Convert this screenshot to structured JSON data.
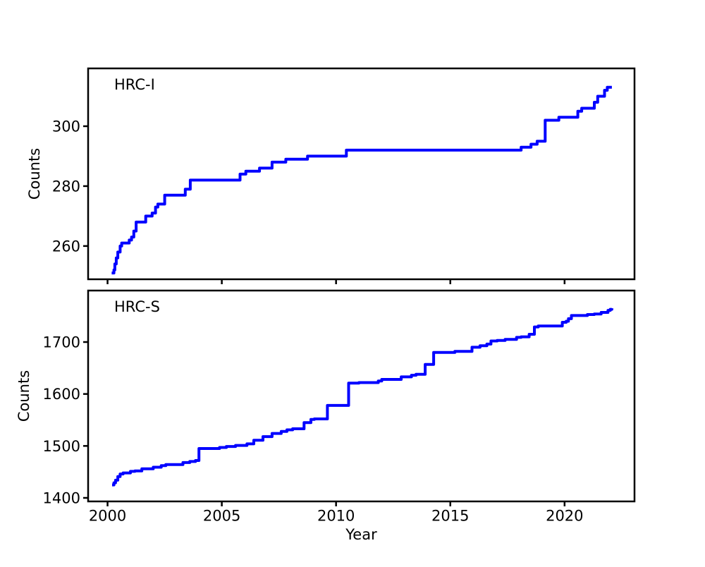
{
  "figure": {
    "background": "#ffffff",
    "text_color": "#000000",
    "spine_color": "#000000"
  },
  "chart_data": [
    {
      "type": "line",
      "panel": "top",
      "label": "HRC-I",
      "ylabel": "Counts",
      "xlabel": "",
      "line_color": "#0000ff",
      "line_width": 4,
      "step_style": "post",
      "grid": false,
      "legend": "none",
      "xlim": [
        1999.15,
        2023.06
      ],
      "ylim": [
        248.9,
        319.3
      ],
      "xticks": [
        2000,
        2005,
        2010,
        2015,
        2020
      ],
      "yticks": [
        260,
        280,
        300
      ],
      "show_xtick_labels": false,
      "points": [
        [
          2000.18,
          251
        ],
        [
          2000.28,
          252
        ],
        [
          2000.32,
          254
        ],
        [
          2000.38,
          256
        ],
        [
          2000.45,
          258
        ],
        [
          2000.55,
          260
        ],
        [
          2000.62,
          261
        ],
        [
          2000.95,
          262
        ],
        [
          2001.05,
          263
        ],
        [
          2001.15,
          265
        ],
        [
          2001.25,
          268
        ],
        [
          2001.67,
          270
        ],
        [
          2001.95,
          271
        ],
        [
          2002.1,
          273
        ],
        [
          2002.2,
          274
        ],
        [
          2002.5,
          277
        ],
        [
          2003.4,
          279
        ],
        [
          2003.62,
          282
        ],
        [
          2005.8,
          284
        ],
        [
          2006.05,
          285
        ],
        [
          2006.65,
          286
        ],
        [
          2007.2,
          288
        ],
        [
          2007.8,
          289
        ],
        [
          2008.75,
          290
        ],
        [
          2010.45,
          292
        ],
        [
          2018.1,
          293
        ],
        [
          2018.53,
          294
        ],
        [
          2018.8,
          295
        ],
        [
          2019.15,
          302
        ],
        [
          2019.75,
          303
        ],
        [
          2020.58,
          305
        ],
        [
          2020.75,
          306
        ],
        [
          2021.3,
          308
        ],
        [
          2021.45,
          310
        ],
        [
          2021.75,
          312
        ],
        [
          2021.87,
          313
        ],
        [
          2022.07,
          313
        ]
      ]
    },
    {
      "type": "line",
      "panel": "bottom",
      "label": "HRC-S",
      "ylabel": "Counts",
      "xlabel": "Year",
      "line_color": "#0000ff",
      "line_width": 4,
      "step_style": "post",
      "grid": false,
      "legend": "none",
      "xlim": [
        1999.15,
        2023.06
      ],
      "ylim": [
        1393.2,
        1799.1
      ],
      "xticks": [
        2000,
        2005,
        2010,
        2015,
        2020
      ],
      "yticks": [
        1400,
        1500,
        1600,
        1700
      ],
      "show_xtick_labels": true,
      "points": [
        [
          2000.2,
          1425
        ],
        [
          2000.28,
          1429
        ],
        [
          2000.35,
          1434
        ],
        [
          2000.45,
          1441
        ],
        [
          2000.55,
          1446
        ],
        [
          2000.68,
          1448
        ],
        [
          2001.0,
          1451
        ],
        [
          2001.2,
          1452
        ],
        [
          2001.5,
          1456
        ],
        [
          2002.0,
          1459
        ],
        [
          2002.35,
          1462
        ],
        [
          2002.55,
          1464
        ],
        [
          2003.3,
          1468
        ],
        [
          2003.6,
          1470
        ],
        [
          2003.85,
          1472
        ],
        [
          2004.0,
          1495
        ],
        [
          2004.9,
          1497
        ],
        [
          2005.2,
          1499
        ],
        [
          2005.6,
          1501
        ],
        [
          2006.1,
          1504
        ],
        [
          2006.4,
          1511
        ],
        [
          2006.8,
          1518
        ],
        [
          2007.2,
          1524
        ],
        [
          2007.6,
          1528
        ],
        [
          2007.85,
          1531
        ],
        [
          2008.1,
          1533
        ],
        [
          2008.6,
          1545
        ],
        [
          2008.9,
          1551
        ],
        [
          2009.05,
          1552
        ],
        [
          2009.62,
          1578
        ],
        [
          2010.55,
          1621
        ],
        [
          2011.0,
          1622
        ],
        [
          2011.85,
          1625
        ],
        [
          2012.0,
          1628
        ],
        [
          2012.85,
          1633
        ],
        [
          2013.3,
          1636
        ],
        [
          2013.5,
          1638
        ],
        [
          2013.9,
          1657
        ],
        [
          2014.27,
          1680
        ],
        [
          2015.2,
          1682
        ],
        [
          2015.95,
          1690
        ],
        [
          2016.3,
          1693
        ],
        [
          2016.6,
          1696
        ],
        [
          2016.78,
          1702
        ],
        [
          2017.05,
          1703
        ],
        [
          2017.4,
          1705
        ],
        [
          2017.9,
          1709
        ],
        [
          2018.1,
          1710
        ],
        [
          2018.45,
          1715
        ],
        [
          2018.68,
          1729
        ],
        [
          2018.85,
          1731
        ],
        [
          2019.9,
          1738
        ],
        [
          2020.07,
          1740
        ],
        [
          2020.17,
          1745
        ],
        [
          2020.3,
          1751
        ],
        [
          2021.0,
          1753
        ],
        [
          2021.3,
          1754
        ],
        [
          2021.6,
          1757
        ],
        [
          2021.9,
          1761
        ],
        [
          2022.0,
          1763
        ],
        [
          2022.07,
          1765
        ]
      ]
    }
  ]
}
